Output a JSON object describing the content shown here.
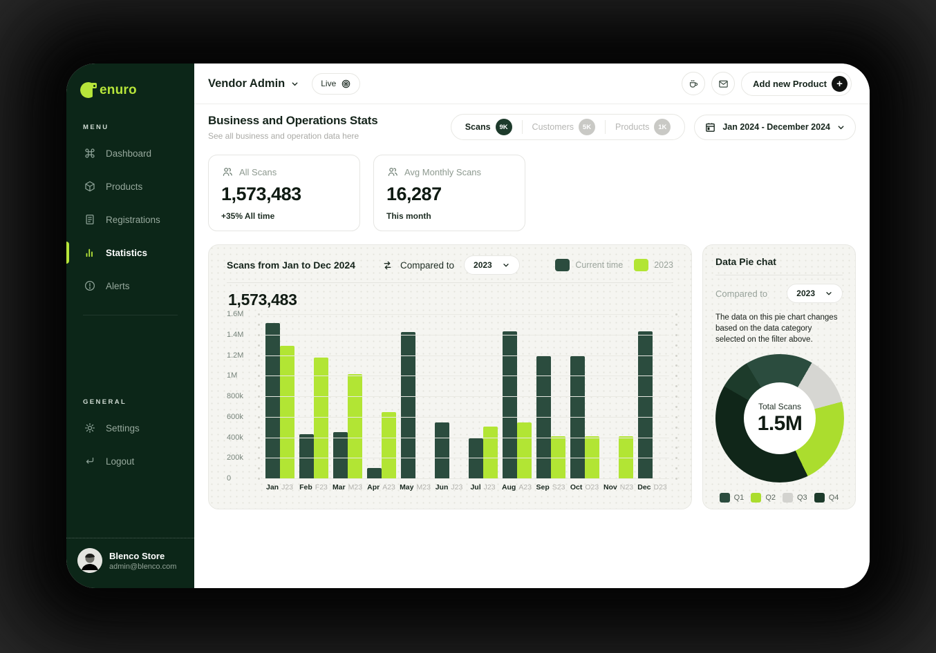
{
  "sidebar": {
    "logo_text": "enuro",
    "menu_label": "MENU",
    "menu_items": [
      {
        "label": "Dashboard",
        "icon": "command-icon",
        "active": false
      },
      {
        "label": "Products",
        "icon": "box-icon",
        "active": false
      },
      {
        "label": "Registrations",
        "icon": "document-icon",
        "active": false
      },
      {
        "label": "Statistics",
        "icon": "bar-chart-icon",
        "active": true
      },
      {
        "label": "Alerts",
        "icon": "alert-circle-icon",
        "active": false
      }
    ],
    "general_label": "GENERAL",
    "general_items": [
      {
        "label": "Settings",
        "icon": "gear-icon"
      },
      {
        "label": "Logout",
        "icon": "logout-icon"
      }
    ],
    "profile": {
      "name": "Blenco Store",
      "email": "admin@blenco.com"
    }
  },
  "header": {
    "workspace": "Vendor Admin",
    "live_label": "Live",
    "add_product_label": "Add new Product"
  },
  "page": {
    "title": "Business and Operations Stats",
    "subtitle": "See all business and operation data here",
    "tabs": [
      {
        "label": "Scans",
        "badge": "9K",
        "active": true
      },
      {
        "label": "Customers",
        "badge": "5K",
        "active": false
      },
      {
        "label": "Products",
        "badge": "1K",
        "active": false
      }
    ],
    "date_range": "Jan 2024 - December 2024"
  },
  "stats": [
    {
      "label": "All Scans",
      "value": "1,573,483",
      "sub": "+35% All time"
    },
    {
      "label": "Avg Monthly Scans",
      "value": "16,287",
      "sub": "This month"
    }
  ],
  "bar_panel": {
    "title": "Scans from Jan to Dec 2024",
    "compared_to_label": "Compared to",
    "compare_value": "2023",
    "headline_value": "1,573,483"
  },
  "pie_panel": {
    "title": "Data Pie chat",
    "compared_to_label": "Compared to",
    "compare_value": "2023",
    "description": "The data on this pie chart changes based on the data category selected on the filter above.",
    "center_label": "Total Scans",
    "center_value": "1.5M"
  },
  "colors": {
    "sidebar_bg": "#0c2618",
    "accent_lime": "#b7e53a",
    "dark_green": "#2b4c3e",
    "badge_active": "#1d3a2b"
  },
  "chart_data": [
    {
      "type": "bar",
      "title": "Scans from Jan to Dec 2024",
      "headline_value": "1,573,483",
      "categories": [
        "Jan",
        "Feb",
        "Mar",
        "Apr",
        "May",
        "Jun",
        "Jul",
        "Aug",
        "Sep",
        "Oct",
        "Nov",
        "Dec"
      ],
      "category_sublabels": [
        "J23",
        "F23",
        "M23",
        "A23",
        "M23",
        "J23",
        "J23",
        "A23",
        "S23",
        "O23",
        "N23",
        "D23"
      ],
      "series": [
        {
          "name": "Current time",
          "color": "#2b4c3e",
          "values": [
            1520000,
            440000,
            460000,
            110000,
            1430000,
            550000,
            400000,
            1440000,
            1200000,
            1200000,
            null,
            1440000
          ]
        },
        {
          "name": "2023",
          "color": "#b2e534",
          "values": [
            1300000,
            1180000,
            1020000,
            650000,
            null,
            null,
            510000,
            550000,
            420000,
            420000,
            420000,
            null
          ]
        }
      ],
      "ylim": [
        0,
        1600000
      ],
      "yticks": [
        "0",
        "200k",
        "400k",
        "600k",
        "800k",
        "1M",
        "1.2M",
        "1.4M",
        "1.6M"
      ],
      "grid": true,
      "legend_position": "top-right"
    },
    {
      "type": "pie",
      "title": "Data Pie chat",
      "center": {
        "label": "Total Scans",
        "value": "1.5M"
      },
      "labels": [
        "Q1",
        "Q2",
        "Q3",
        "Q4"
      ],
      "values_pct": [
        17,
        22,
        12.5,
        48.5
      ],
      "legend": [
        {
          "label": "Q1",
          "color": "#2b4c3e"
        },
        {
          "label": "Q2",
          "color": "#abdd2e"
        },
        {
          "label": "Q3",
          "color": "#d3d3cf"
        },
        {
          "label": "Q4",
          "color": "#1d3b2b"
        }
      ],
      "start_deg": -60,
      "segments_render": [
        {
          "q": "Q4",
          "color": "#1d3b2b",
          "pct": 8
        },
        {
          "q": "Q1",
          "color": "#2b4c3e",
          "pct": 17
        },
        {
          "q": "Q3",
          "color": "#d6d6d2",
          "pct": 12.5
        },
        {
          "q": "Q2",
          "color": "#abdd2e",
          "pct": 22
        },
        {
          "q": "Q4",
          "color": "#102619",
          "pct": 40.5
        }
      ]
    }
  ]
}
